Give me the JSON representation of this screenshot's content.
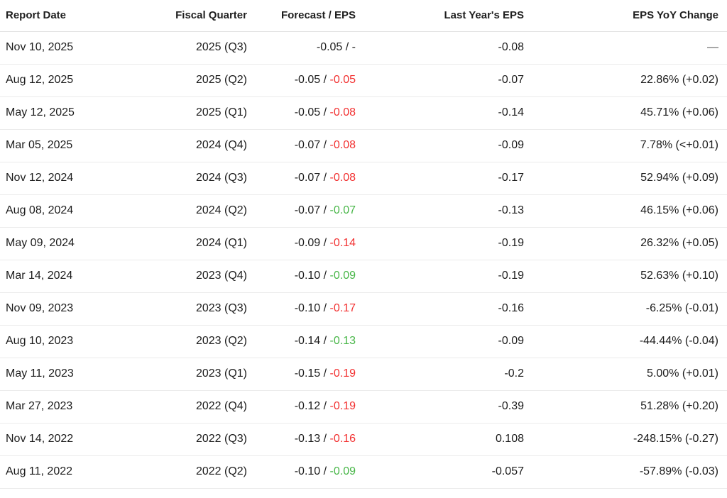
{
  "colors": {
    "negative": "#f23030",
    "positive": "#47b647",
    "muted": "#595959"
  },
  "table": {
    "headers": [
      "Report Date",
      "Fiscal Quarter",
      "Forecast / EPS",
      "Last Year's EPS",
      "EPS YoY Change"
    ],
    "rows": [
      {
        "report_date": "Nov 10, 2025",
        "fiscal_quarter": "2025 (Q3)",
        "forecast": "-0.05",
        "eps": "-",
        "eps_color": "neutral",
        "last_year_eps": "-0.08",
        "yoy_change": "—"
      },
      {
        "report_date": "Aug 12, 2025",
        "fiscal_quarter": "2025 (Q2)",
        "forecast": "-0.05",
        "eps": "-0.05",
        "eps_color": "red",
        "last_year_eps": "-0.07",
        "yoy_change": "22.86% (+0.02)"
      },
      {
        "report_date": "May 12, 2025",
        "fiscal_quarter": "2025 (Q1)",
        "forecast": "-0.05",
        "eps": "-0.08",
        "eps_color": "red",
        "last_year_eps": "-0.14",
        "yoy_change": "45.71% (+0.06)"
      },
      {
        "report_date": "Mar 05, 2025",
        "fiscal_quarter": "2024 (Q4)",
        "forecast": "-0.07",
        "eps": "-0.08",
        "eps_color": "red",
        "last_year_eps": "-0.09",
        "yoy_change": "7.78% (<+0.01)"
      },
      {
        "report_date": "Nov 12, 2024",
        "fiscal_quarter": "2024 (Q3)",
        "forecast": "-0.07",
        "eps": "-0.08",
        "eps_color": "red",
        "last_year_eps": "-0.17",
        "yoy_change": "52.94% (+0.09)"
      },
      {
        "report_date": "Aug 08, 2024",
        "fiscal_quarter": "2024 (Q2)",
        "forecast": "-0.07",
        "eps": "-0.07",
        "eps_color": "green",
        "last_year_eps": "-0.13",
        "yoy_change": "46.15% (+0.06)"
      },
      {
        "report_date": "May 09, 2024",
        "fiscal_quarter": "2024 (Q1)",
        "forecast": "-0.09",
        "eps": "-0.14",
        "eps_color": "red",
        "last_year_eps": "-0.19",
        "yoy_change": "26.32% (+0.05)"
      },
      {
        "report_date": "Mar 14, 2024",
        "fiscal_quarter": "2023 (Q4)",
        "forecast": "-0.10",
        "eps": "-0.09",
        "eps_color": "green",
        "last_year_eps": "-0.19",
        "yoy_change": "52.63% (+0.10)"
      },
      {
        "report_date": "Nov 09, 2023",
        "fiscal_quarter": "2023 (Q3)",
        "forecast": "-0.10",
        "eps": "-0.17",
        "eps_color": "red",
        "last_year_eps": "-0.16",
        "yoy_change": "-6.25% (-0.01)"
      },
      {
        "report_date": "Aug 10, 2023",
        "fiscal_quarter": "2023 (Q2)",
        "forecast": "-0.14",
        "eps": "-0.13",
        "eps_color": "green",
        "last_year_eps": "-0.09",
        "yoy_change": "-44.44% (-0.04)"
      },
      {
        "report_date": "May 11, 2023",
        "fiscal_quarter": "2023 (Q1)",
        "forecast": "-0.15",
        "eps": "-0.19",
        "eps_color": "red",
        "last_year_eps": "-0.2",
        "yoy_change": "5.00% (+0.01)"
      },
      {
        "report_date": "Mar 27, 2023",
        "fiscal_quarter": "2022 (Q4)",
        "forecast": "-0.12",
        "eps": "-0.19",
        "eps_color": "red",
        "last_year_eps": "-0.39",
        "yoy_change": "51.28% (+0.20)"
      },
      {
        "report_date": "Nov 14, 2022",
        "fiscal_quarter": "2022 (Q3)",
        "forecast": "-0.13",
        "eps": "-0.16",
        "eps_color": "red",
        "last_year_eps": "0.108",
        "yoy_change": "-248.15% (-0.27)"
      },
      {
        "report_date": "Aug 11, 2022",
        "fiscal_quarter": "2022 (Q2)",
        "forecast": "-0.10",
        "eps": "-0.09",
        "eps_color": "green",
        "last_year_eps": "-0.057",
        "yoy_change": "-57.89% (-0.03)"
      }
    ]
  }
}
